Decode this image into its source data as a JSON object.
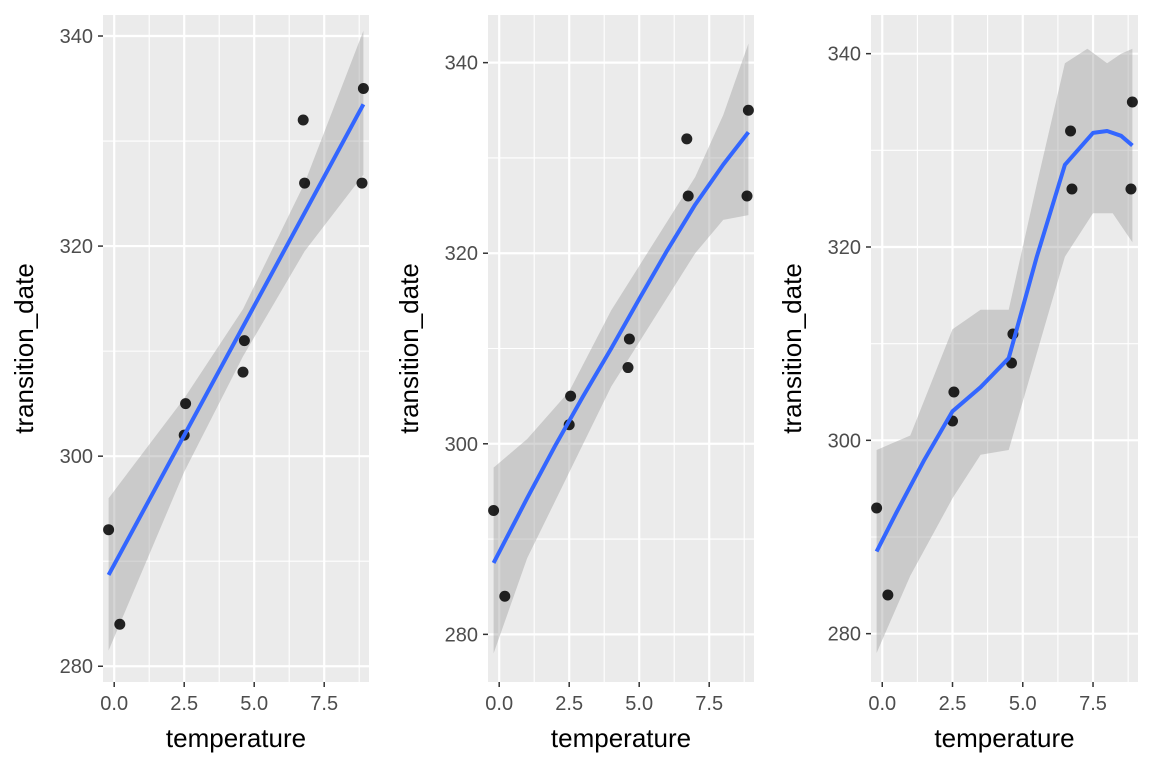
{
  "chart_data": [
    {
      "type": "scatter",
      "fit": "linear",
      "xlabel": "temperature",
      "ylabel": "transition_date",
      "xlim": [
        -0.4,
        9.1
      ],
      "ylim": [
        278.5,
        342
      ],
      "xticks": [
        0.0,
        2.5,
        5.0,
        7.5
      ],
      "xtick_labels": [
        "0.0",
        "2.5",
        "5.0",
        "7.5"
      ],
      "yticks": [
        280,
        300,
        320,
        340
      ],
      "ytick_labels": [
        "280",
        "300",
        "320",
        "340"
      ],
      "grid": true,
      "points": [
        {
          "x": -0.2,
          "y": 293
        },
        {
          "x": 0.2,
          "y": 284
        },
        {
          "x": 2.5,
          "y": 302
        },
        {
          "x": 2.55,
          "y": 305
        },
        {
          "x": 4.6,
          "y": 308
        },
        {
          "x": 4.65,
          "y": 311
        },
        {
          "x": 6.75,
          "y": 332
        },
        {
          "x": 6.8,
          "y": 326
        },
        {
          "x": 8.85,
          "y": 326
        },
        {
          "x": 8.9,
          "y": 335
        }
      ],
      "smooth_line": [
        {
          "x": -0.2,
          "y": 288.7
        },
        {
          "x": 8.9,
          "y": 333.5
        }
      ],
      "band_lower": [
        {
          "x": -0.2,
          "y": 281.5
        },
        {
          "x": 2.5,
          "y": 298.5
        },
        {
          "x": 4.6,
          "y": 309.5
        },
        {
          "x": 6.8,
          "y": 319.5
        },
        {
          "x": 8.9,
          "y": 326.8
        }
      ],
      "band_upper": [
        {
          "x": -0.2,
          "y": 296
        },
        {
          "x": 2.5,
          "y": 305.5
        },
        {
          "x": 4.6,
          "y": 314
        },
        {
          "x": 6.8,
          "y": 326
        },
        {
          "x": 8.9,
          "y": 340.5
        }
      ]
    },
    {
      "type": "scatter",
      "fit": "smooth",
      "xlabel": "temperature",
      "ylabel": "transition_date",
      "xlim": [
        -0.4,
        9.1
      ],
      "ylim": [
        275,
        345
      ],
      "xticks": [
        0.0,
        2.5,
        5.0,
        7.5
      ],
      "xtick_labels": [
        "0.0",
        "2.5",
        "5.0",
        "7.5"
      ],
      "yticks": [
        280,
        300,
        320,
        340
      ],
      "ytick_labels": [
        "280",
        "300",
        "320",
        "340"
      ],
      "grid": true,
      "points": [
        {
          "x": -0.2,
          "y": 293
        },
        {
          "x": 0.2,
          "y": 284
        },
        {
          "x": 2.5,
          "y": 302
        },
        {
          "x": 2.55,
          "y": 305
        },
        {
          "x": 4.6,
          "y": 308
        },
        {
          "x": 4.65,
          "y": 311
        },
        {
          "x": 6.7,
          "y": 332
        },
        {
          "x": 6.75,
          "y": 326
        },
        {
          "x": 8.85,
          "y": 326
        },
        {
          "x": 8.9,
          "y": 335
        }
      ],
      "smooth_line": [
        {
          "x": -0.2,
          "y": 287.5
        },
        {
          "x": 1.0,
          "y": 294.3
        },
        {
          "x": 2.0,
          "y": 299.8
        },
        {
          "x": 3.0,
          "y": 305.0
        },
        {
          "x": 4.0,
          "y": 310.0
        },
        {
          "x": 5.0,
          "y": 315.2
        },
        {
          "x": 6.0,
          "y": 320.3
        },
        {
          "x": 7.0,
          "y": 325.1
        },
        {
          "x": 8.0,
          "y": 329.3
        },
        {
          "x": 8.9,
          "y": 332.7
        }
      ],
      "band_lower": [
        {
          "x": -0.2,
          "y": 278
        },
        {
          "x": 1.0,
          "y": 288
        },
        {
          "x": 2.5,
          "y": 297
        },
        {
          "x": 4.0,
          "y": 306
        },
        {
          "x": 5.5,
          "y": 313
        },
        {
          "x": 7.0,
          "y": 320
        },
        {
          "x": 8.0,
          "y": 323.5
        },
        {
          "x": 8.9,
          "y": 324
        }
      ],
      "band_upper": [
        {
          "x": -0.2,
          "y": 297.5
        },
        {
          "x": 1.0,
          "y": 300.5
        },
        {
          "x": 2.5,
          "y": 305.5
        },
        {
          "x": 4.0,
          "y": 314
        },
        {
          "x": 5.5,
          "y": 321
        },
        {
          "x": 7.0,
          "y": 328
        },
        {
          "x": 8.0,
          "y": 334.5
        },
        {
          "x": 8.9,
          "y": 342
        }
      ]
    },
    {
      "type": "scatter",
      "fit": "smooth",
      "xlabel": "temperature",
      "ylabel": "transition_date",
      "xlim": [
        -0.4,
        9.1
      ],
      "ylim": [
        275,
        344
      ],
      "xticks": [
        0.0,
        2.5,
        5.0,
        7.5
      ],
      "xtick_labels": [
        "0.0",
        "2.5",
        "5.0",
        "7.5"
      ],
      "yticks": [
        280,
        300,
        320,
        340
      ],
      "ytick_labels": [
        "280",
        "300",
        "320",
        "340"
      ],
      "grid": true,
      "points": [
        {
          "x": -0.2,
          "y": 293
        },
        {
          "x": 0.2,
          "y": 284
        },
        {
          "x": 2.5,
          "y": 302
        },
        {
          "x": 2.55,
          "y": 305
        },
        {
          "x": 4.6,
          "y": 308
        },
        {
          "x": 4.65,
          "y": 311
        },
        {
          "x": 6.7,
          "y": 332
        },
        {
          "x": 6.75,
          "y": 326
        },
        {
          "x": 8.85,
          "y": 326
        },
        {
          "x": 8.9,
          "y": 335
        }
      ],
      "smooth_line": [
        {
          "x": -0.2,
          "y": 288.5
        },
        {
          "x": 0.5,
          "y": 292.5
        },
        {
          "x": 1.5,
          "y": 298.0
        },
        {
          "x": 2.5,
          "y": 303.0
        },
        {
          "x": 3.5,
          "y": 305.5
        },
        {
          "x": 4.5,
          "y": 308.5
        },
        {
          "x": 5.5,
          "y": 319.0
        },
        {
          "x": 6.5,
          "y": 328.5
        },
        {
          "x": 7.5,
          "y": 331.8
        },
        {
          "x": 8.0,
          "y": 332.0
        },
        {
          "x": 8.5,
          "y": 331.5
        },
        {
          "x": 8.9,
          "y": 330.5
        }
      ],
      "band_lower": [
        {
          "x": -0.2,
          "y": 278
        },
        {
          "x": 1.0,
          "y": 286
        },
        {
          "x": 2.5,
          "y": 294
        },
        {
          "x": 3.5,
          "y": 298.5
        },
        {
          "x": 4.5,
          "y": 299
        },
        {
          "x": 5.5,
          "y": 309
        },
        {
          "x": 6.5,
          "y": 319
        },
        {
          "x": 7.5,
          "y": 323.5
        },
        {
          "x": 8.2,
          "y": 323.5
        },
        {
          "x": 8.9,
          "y": 320.5
        }
      ],
      "band_upper": [
        {
          "x": -0.2,
          "y": 299
        },
        {
          "x": 1.0,
          "y": 300.5
        },
        {
          "x": 2.5,
          "y": 311.5
        },
        {
          "x": 3.5,
          "y": 313.5
        },
        {
          "x": 4.5,
          "y": 313.5
        },
        {
          "x": 5.5,
          "y": 326.5
        },
        {
          "x": 6.5,
          "y": 339
        },
        {
          "x": 7.3,
          "y": 340.5
        },
        {
          "x": 8.0,
          "y": 339
        },
        {
          "x": 8.5,
          "y": 340
        },
        {
          "x": 8.9,
          "y": 340.5
        }
      ]
    }
  ]
}
